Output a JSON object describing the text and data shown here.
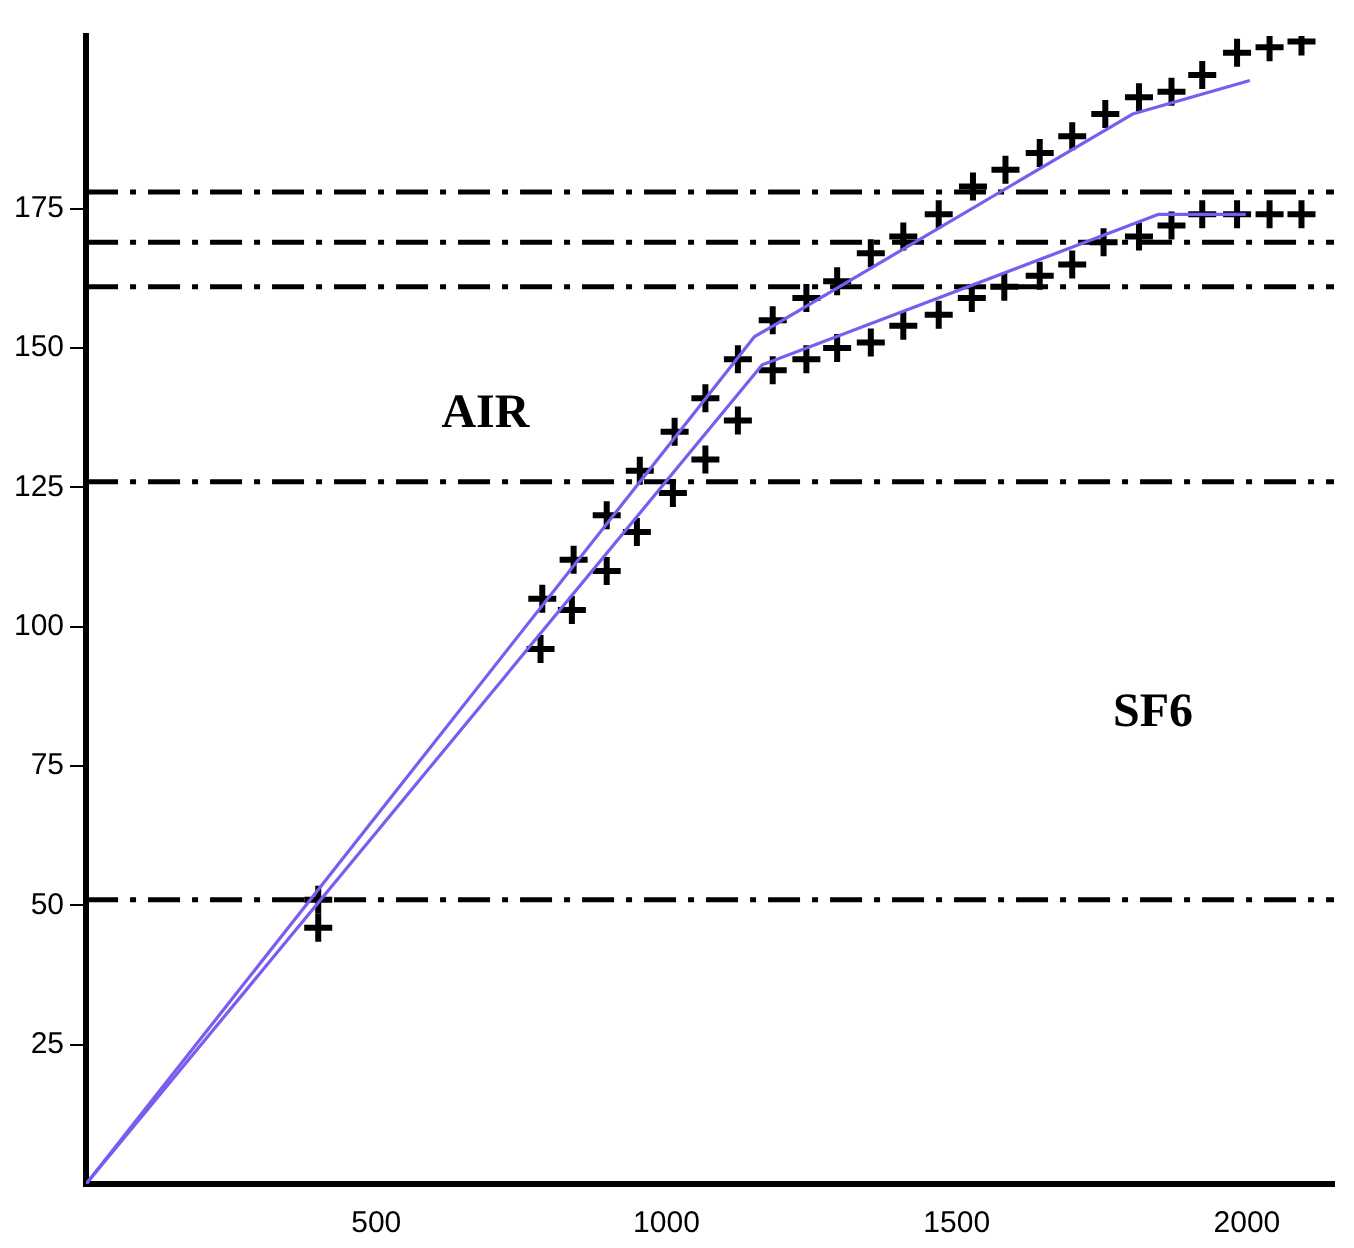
{
  "chart_data": {
    "type": "scatter",
    "xlim": [
      0,
      2150
    ],
    "ylim": [
      0,
      206
    ],
    "xticks": [
      500,
      1000,
      1500,
      2000
    ],
    "yticks": [
      25,
      50,
      75,
      100,
      125,
      150,
      175
    ],
    "grid": false,
    "legend": false,
    "series": [
      {
        "type": "scatter",
        "marker": "cross",
        "color": "#000000",
        "x": [
          400,
          786,
          840,
          897,
          954,
          1014,
          1067,
          1123,
          1183,
          1241,
          1294,
          1352,
          1408,
          1469,
          1528,
          1584,
          1643,
          1699,
          1756,
          1814,
          1870,
          1923,
          1983,
          2039,
          2094
        ],
        "values": [
          51,
          105,
          112,
          120,
          128,
          135,
          141,
          148,
          155,
          159,
          162,
          167,
          170,
          174,
          179,
          182,
          185,
          188,
          192,
          195,
          196,
          199,
          203,
          204,
          205
        ]
      },
      {
        "type": "scatter",
        "marker": "cross",
        "color": "#000000",
        "x": [
          400,
          783,
          837,
          897,
          949,
          1011,
          1067,
          1123,
          1183,
          1241,
          1294,
          1352,
          1408,
          1469,
          1526,
          1582,
          1643,
          1699,
          1753,
          1814,
          1870,
          1923,
          1983,
          2039,
          2094
        ],
        "values": [
          46,
          96,
          103,
          110,
          117,
          124,
          130,
          137,
          146,
          148,
          150,
          151,
          154,
          156,
          159,
          161,
          163,
          165,
          169,
          170,
          172,
          174,
          174,
          174,
          174
        ]
      },
      {
        "type": "line",
        "marker": "none",
        "line_style": "solid",
        "color": "#7b5cf0",
        "x": [
          0,
          1151,
          1803,
          2005
        ],
        "values": [
          0,
          152,
          192,
          198
        ]
      },
      {
        "type": "line",
        "marker": "none",
        "line_style": "solid",
        "color": "#7b5cf0",
        "x": [
          0,
          1165,
          1848,
          1998
        ],
        "values": [
          0,
          147,
          174,
          174
        ]
      }
    ],
    "ref_lines": [
      {
        "axis": "y",
        "value": 178,
        "color": "#000000",
        "line_style": "dashed"
      },
      {
        "axis": "y",
        "value": 169,
        "color": "#000000",
        "line_style": "dashed"
      },
      {
        "axis": "y",
        "value": 161,
        "color": "#000000",
        "line_style": "dashed"
      },
      {
        "axis": "y",
        "value": 126,
        "color": "#000000",
        "line_style": "dashed"
      },
      {
        "axis": "y",
        "value": 51,
        "color": "#000000",
        "line_style": "dashed"
      }
    ],
    "annotations": [
      "AIR",
      "SF6"
    ]
  }
}
